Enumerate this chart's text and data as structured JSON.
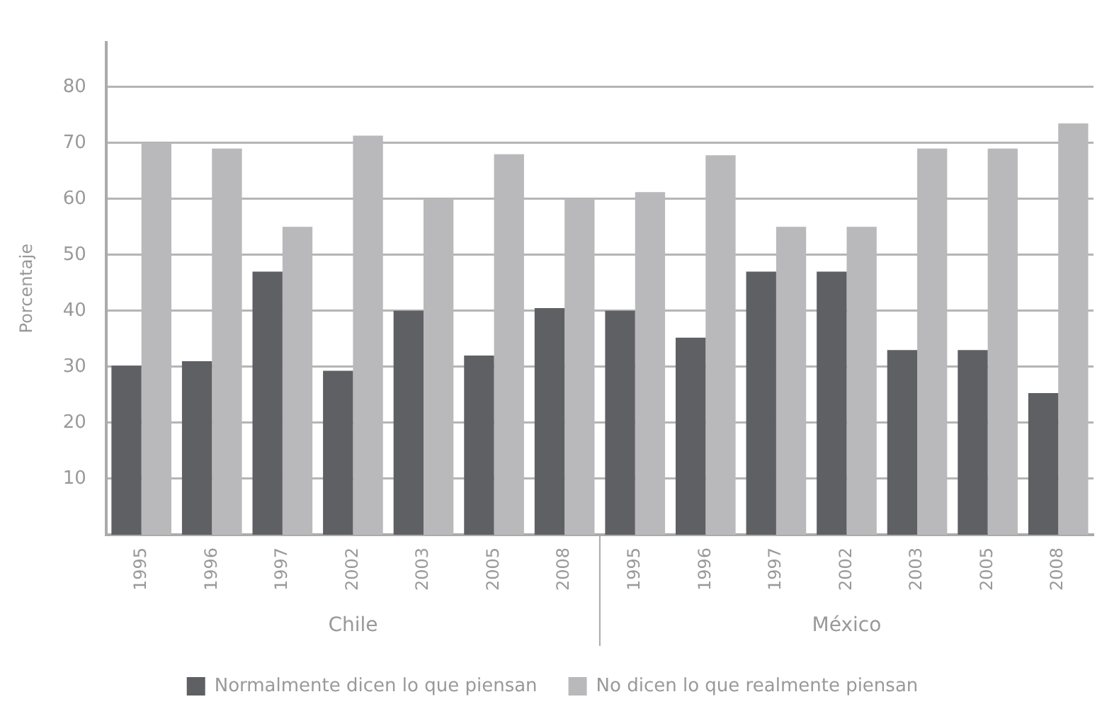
{
  "chart_data": {
    "type": "bar",
    "ylabel": "Porcentaje",
    "categories": [
      "1995",
      "1996",
      "1997",
      "2002",
      "2003",
      "2005",
      "2008",
      "1995",
      "1996",
      "1997",
      "2002",
      "2003",
      "2005",
      "2008"
    ],
    "series": [
      {
        "name": "Normalmente dicen lo que piensan",
        "color": "#5f6064",
        "values": [
          30.2,
          31,
          47,
          29.3,
          40,
          32,
          40.5,
          40,
          35.2,
          47,
          47,
          33,
          33,
          25.3
        ]
      },
      {
        "name": "No dicen lo que realmente piensan",
        "color": "#b9b9bb",
        "values": [
          70,
          69,
          55,
          71.3,
          60,
          68,
          60,
          61.2,
          67.8,
          55,
          55,
          69,
          69,
          73.5
        ]
      }
    ],
    "annotations": [
      "Chile",
      "México"
    ],
    "ylim": [
      0,
      88
    ],
    "yticks": [
      10,
      20,
      30,
      40,
      50,
      60,
      70,
      80
    ],
    "grid": "y",
    "legend": "bottom"
  }
}
